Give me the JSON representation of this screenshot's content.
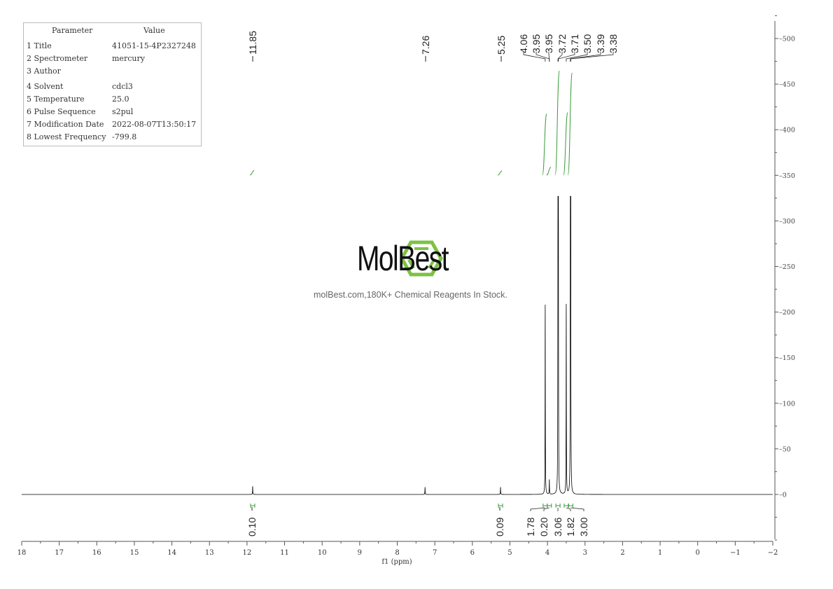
{
  "parameters": {
    "header": [
      "Parameter",
      "Value"
    ],
    "rows": [
      [
        "1 Title",
        "41051-15-4P2327248"
      ],
      [
        "2 Spectrometer",
        "mercury"
      ],
      [
        "3 Author",
        ""
      ],
      [
        "4 Solvent",
        "cdcl3"
      ],
      [
        "5 Temperature",
        "25.0"
      ],
      [
        "6 Pulse Sequence",
        "s2pul"
      ],
      [
        "7 Modification Date",
        "2022-08-07T13:50:17"
      ],
      [
        "8 Lowest Frequency",
        "-799.8"
      ]
    ]
  },
  "watermark": {
    "brand": "MolBest",
    "tagline": "molBest.com,180K+ Chemical Reagents In Stock.",
    "logo_color": "#7cc242"
  },
  "chart_data": {
    "type": "line",
    "title": "",
    "xlabel": "f1 (ppm)",
    "ylabel": "",
    "xlim": [
      18,
      -2
    ],
    "ylim": [
      0,
      500
    ],
    "x_reversed": true,
    "x_ticks": [
      18,
      17,
      16,
      15,
      14,
      13,
      12,
      11,
      10,
      9,
      8,
      7,
      6,
      5,
      4,
      3,
      2,
      1,
      0,
      -1,
      -2
    ],
    "y_ticks": [
      0,
      50,
      100,
      150,
      200,
      250,
      300,
      350,
      400,
      450,
      500
    ],
    "y_axis_side": "right",
    "grid": false,
    "line_color": "#000000",
    "integral_color": "#3a9a3a",
    "peaks": [
      {
        "ppm": 11.85,
        "height": 9
      },
      {
        "ppm": 7.26,
        "height": 8
      },
      {
        "ppm": 5.25,
        "height": 8
      },
      {
        "ppm": 4.06,
        "height": 208
      },
      {
        "ppm": 3.95,
        "height": 16
      },
      {
        "ppm": 3.72,
        "height": 330
      },
      {
        "ppm": 3.71,
        "height": 330
      },
      {
        "ppm": 3.5,
        "height": 208
      },
      {
        "ppm": 3.39,
        "height": 330
      },
      {
        "ppm": 3.38,
        "height": 330
      }
    ],
    "peak_labels": [
      "11.85",
      "7.26",
      "5.25",
      "4.06",
      "3.95",
      "3.95",
      "3.72",
      "3.71",
      "3.50",
      "3.39",
      "3.38"
    ],
    "integrals": [
      {
        "ppm": 11.85,
        "value": "0.10"
      },
      {
        "ppm": 5.25,
        "value": "0.09"
      },
      {
        "ppm": 4.06,
        "value": "1.78"
      },
      {
        "ppm": 3.95,
        "value": "0.20"
      },
      {
        "ppm": 3.72,
        "value": "3.06"
      },
      {
        "ppm": 3.5,
        "value": "1.82"
      },
      {
        "ppm": 3.38,
        "value": "3.00"
      }
    ]
  }
}
